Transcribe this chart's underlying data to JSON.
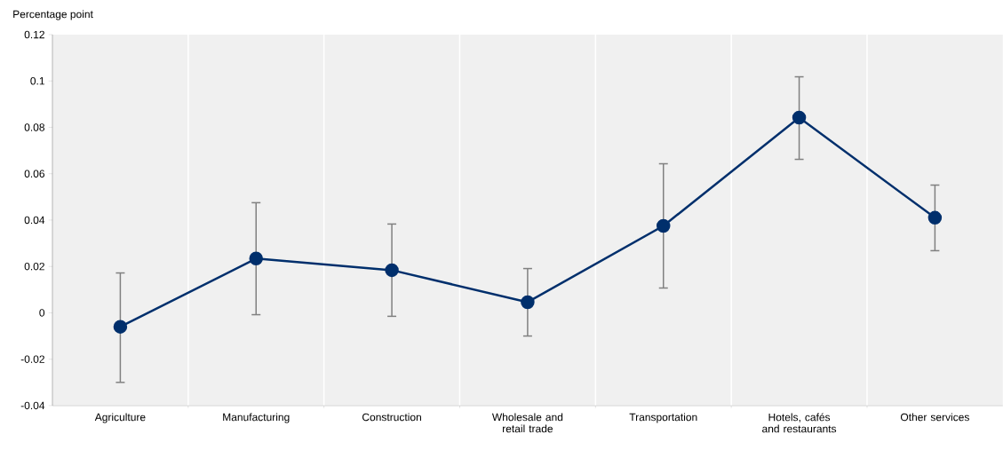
{
  "chart_data": {
    "type": "line",
    "ylabel": "Percentage point",
    "categories": [
      "Agriculture",
      "Manufacturing",
      "Construction",
      "Wholesale and retail trade",
      "Transportation",
      "Hotels, cafés and restaurants",
      "Other services"
    ],
    "series": [
      {
        "color": "#002f6c",
        "values": [
          -0.006,
          0.0234,
          0.0184,
          0.0046,
          0.0375,
          0.0842,
          0.041
        ],
        "errors": [
          [
            -0.03,
            0.0172
          ],
          [
            -0.0008,
            0.0475
          ],
          [
            -0.0015,
            0.0383
          ],
          [
            -0.01,
            0.0191
          ],
          [
            0.0107,
            0.0643
          ],
          [
            0.0662,
            0.1018
          ],
          [
            0.0268,
            0.0551
          ]
        ]
      }
    ],
    "ylim": [
      -0.04,
      0.12
    ],
    "yticks": [
      -0.04,
      -0.02,
      0,
      0.02,
      0.04,
      0.06,
      0.08,
      0.1,
      0.12
    ],
    "grid": "x",
    "marker": "circle",
    "line_style": "solid"
  }
}
